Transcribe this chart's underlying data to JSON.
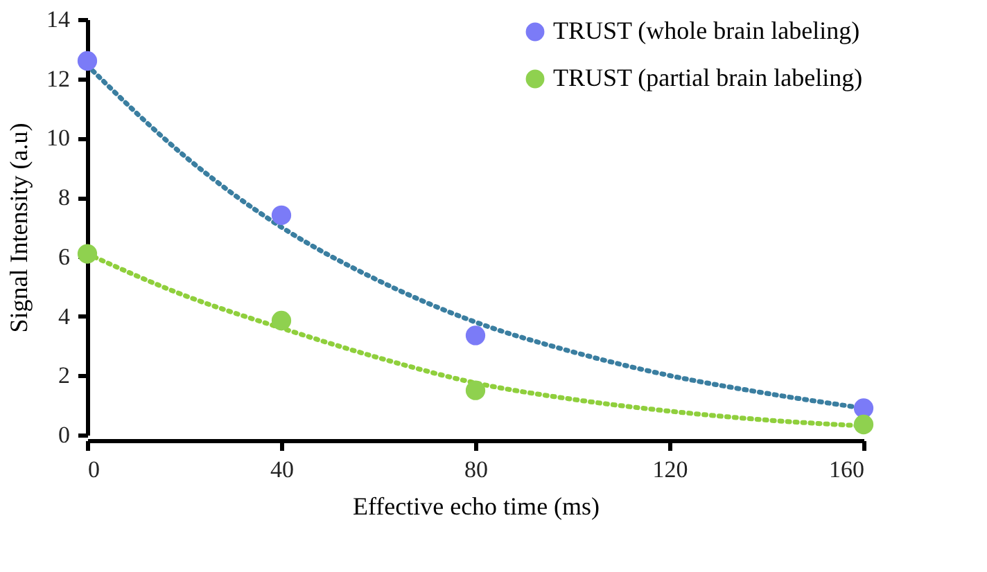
{
  "chart_data": {
    "type": "scatter",
    "xlabel": "Effective echo time (ms)",
    "ylabel": "Signal Intensity (a.u)",
    "xlim": [
      0,
      160
    ],
    "xticks": [
      0,
      40,
      80,
      120,
      160
    ],
    "ylim": [
      0,
      14
    ],
    "yticks": [
      0,
      2,
      4,
      6,
      8,
      10,
      12,
      14
    ],
    "grid": false,
    "legend": "top right",
    "marker": "circle",
    "series": [
      {
        "type": "line",
        "line_style": "dotted",
        "marker": "none",
        "color": "#3a7ea0",
        "x": [
          0,
          20,
          40,
          60,
          80,
          100,
          120,
          140,
          160
        ],
        "values": [
          12.45,
          9.4,
          7.0,
          5.2,
          3.8,
          2.8,
          2.0,
          1.4,
          0.9
        ]
      },
      {
        "type": "line",
        "line_style": "dotted",
        "marker": "none",
        "color": "#8fcf3c",
        "x": [
          0,
          20,
          40,
          60,
          80,
          100,
          120,
          140,
          160
        ],
        "values": [
          6.1,
          4.7,
          3.6,
          2.6,
          1.75,
          1.2,
          0.8,
          0.5,
          0.3
        ]
      },
      {
        "name": "TRUST (whole brain labeling)",
        "color": "#7b7bf7",
        "x": [
          0,
          40,
          80,
          160
        ],
        "values": [
          12.6,
          7.4,
          3.35,
          0.9
        ]
      },
      {
        "name": "TRUST (partial brain labeling)",
        "color": "#8fd14f",
        "x": [
          0,
          40,
          80,
          160
        ],
        "values": [
          6.1,
          3.85,
          1.5,
          0.35
        ]
      }
    ]
  }
}
